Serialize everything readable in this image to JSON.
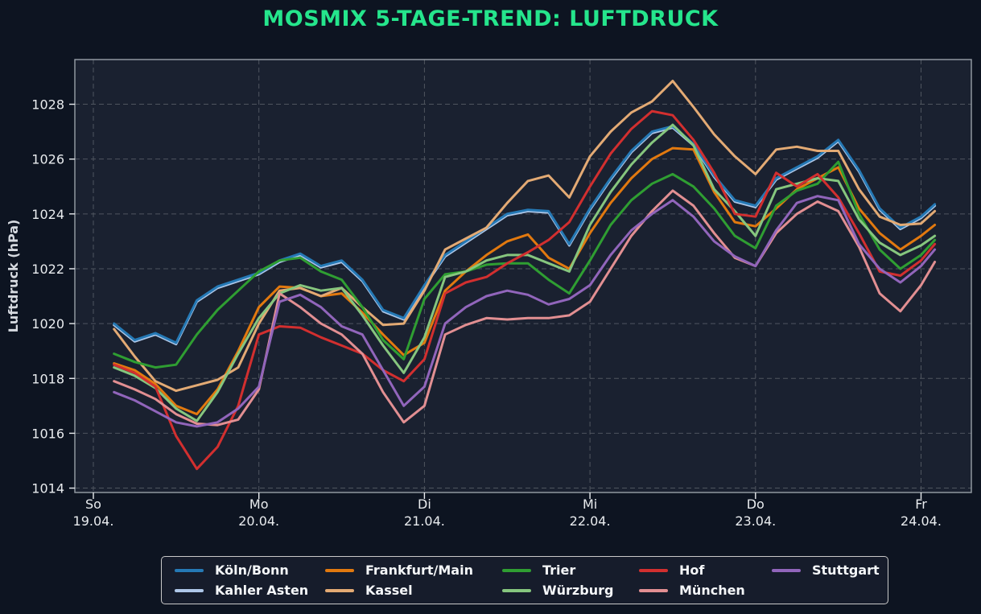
{
  "chart_data": {
    "type": "line",
    "title": "MOSMIX 5-TAGE-TREND: LUFTDRUCK",
    "ylabel": "Luftdruck (hPa)",
    "ylim": [
      1013.8,
      1029.6
    ],
    "yticks": [
      1014,
      1016,
      1018,
      1020,
      1022,
      1024,
      1026,
      1028
    ],
    "grid": "dashed",
    "legend_position": "bottom-center",
    "x_unit": "hours since So 19.04. 00:00",
    "x_hours": [
      3,
      6,
      9,
      12,
      15,
      18,
      21,
      24,
      27,
      30,
      33,
      36,
      39,
      42,
      45,
      48,
      51,
      54,
      57,
      60,
      63,
      66,
      69,
      72,
      75,
      78,
      81,
      84,
      87,
      90,
      93,
      96,
      99,
      102,
      105,
      108,
      111,
      114,
      117,
      120,
      122
    ],
    "xticks": [
      {
        "hour": 0,
        "day": "So",
        "date": "19.04."
      },
      {
        "hour": 24,
        "day": "Mo",
        "date": "20.04."
      },
      {
        "hour": 48,
        "day": "Di",
        "date": "21.04."
      },
      {
        "hour": 72,
        "day": "Mi",
        "date": "22.04."
      },
      {
        "hour": 96,
        "day": "Do",
        "date": "23.04."
      },
      {
        "hour": 120,
        "day": "Fr",
        "date": "24.04."
      }
    ],
    "series": [
      {
        "id": "koeln-bonn",
        "name": "Köln/Bonn",
        "color": "#2579b5",
        "values": [
          1020.0,
          1019.4,
          1019.65,
          1019.3,
          1020.85,
          1021.35,
          1021.6,
          1021.85,
          1022.3,
          1022.55,
          1022.1,
          1022.3,
          1021.6,
          1020.5,
          1020.2,
          1021.4,
          1022.5,
          1023.0,
          1023.5,
          1024.0,
          1024.15,
          1024.1,
          1022.9,
          1024.2,
          1025.3,
          1026.3,
          1027.0,
          1027.2,
          1026.55,
          1025.4,
          1024.5,
          1024.3,
          1025.3,
          1025.7,
          1026.1,
          1026.7,
          1025.6,
          1024.2,
          1023.5,
          1023.9,
          1024.35
        ]
      },
      {
        "id": "kahler-asten",
        "name": "Kahler Asten",
        "color": "#aec7e8",
        "values": [
          1019.95,
          1019.35,
          1019.6,
          1019.25,
          1020.8,
          1021.3,
          1021.55,
          1021.8,
          1022.25,
          1022.5,
          1022.05,
          1022.25,
          1021.55,
          1020.45,
          1020.15,
          1021.35,
          1022.45,
          1022.95,
          1023.45,
          1023.95,
          1024.1,
          1024.05,
          1022.85,
          1024.15,
          1025.25,
          1026.25,
          1026.95,
          1027.15,
          1026.5,
          1025.35,
          1024.45,
          1024.25,
          1025.25,
          1025.65,
          1026.05,
          1026.65,
          1025.55,
          1024.15,
          1023.45,
          1023.85,
          1024.3
        ]
      },
      {
        "id": "frankfurt-main",
        "name": "Frankfurt/Main",
        "color": "#e2790f",
        "values": [
          1018.55,
          1018.3,
          1017.8,
          1017.0,
          1016.7,
          1017.6,
          1019.0,
          1020.6,
          1021.35,
          1021.3,
          1021.0,
          1021.1,
          1020.4,
          1019.6,
          1018.85,
          1019.3,
          1021.2,
          1021.9,
          1022.5,
          1023.0,
          1023.25,
          1022.4,
          1022.0,
          1023.3,
          1024.4,
          1025.3,
          1026.0,
          1026.4,
          1026.35,
          1024.8,
          1023.7,
          1023.55,
          1024.2,
          1024.9,
          1025.3,
          1025.7,
          1024.2,
          1023.3,
          1022.7,
          1023.2,
          1023.6
        ]
      },
      {
        "id": "kassel",
        "name": "Kassel",
        "color": "#e3aa74",
        "values": [
          1019.8,
          1018.8,
          1017.9,
          1017.55,
          1017.75,
          1017.95,
          1018.4,
          1020.0,
          1021.2,
          1021.3,
          1021.0,
          1021.3,
          1020.6,
          1019.95,
          1020.0,
          1021.2,
          1022.7,
          1023.1,
          1023.5,
          1024.4,
          1025.2,
          1025.4,
          1024.6,
          1026.1,
          1027.0,
          1027.7,
          1028.1,
          1028.85,
          1027.9,
          1026.9,
          1026.1,
          1025.45,
          1026.35,
          1026.45,
          1026.3,
          1026.3,
          1024.9,
          1023.9,
          1023.6,
          1023.65,
          1024.1
        ]
      },
      {
        "id": "trier",
        "name": "Trier",
        "color": "#2f9e32",
        "values": [
          1018.9,
          1018.6,
          1018.4,
          1018.5,
          1019.6,
          1020.5,
          1021.2,
          1021.9,
          1022.3,
          1022.4,
          1021.9,
          1021.6,
          1020.6,
          1019.4,
          1018.7,
          1020.9,
          1021.8,
          1021.9,
          1022.15,
          1022.2,
          1022.2,
          1021.6,
          1021.1,
          1022.3,
          1023.6,
          1024.5,
          1025.1,
          1025.45,
          1025.0,
          1024.2,
          1023.2,
          1022.75,
          1024.3,
          1024.85,
          1025.1,
          1025.9,
          1024.0,
          1022.7,
          1022.0,
          1022.5,
          1023.05
        ]
      },
      {
        "id": "wuerzburg",
        "name": "Würzburg",
        "color": "#86c67e",
        "values": [
          1018.4,
          1018.1,
          1017.65,
          1016.9,
          1016.45,
          1017.5,
          1018.9,
          1020.2,
          1021.1,
          1021.4,
          1021.2,
          1021.3,
          1020.3,
          1019.2,
          1018.2,
          1019.5,
          1021.7,
          1021.9,
          1022.3,
          1022.5,
          1022.5,
          1022.2,
          1021.9,
          1023.6,
          1024.8,
          1025.8,
          1026.6,
          1027.25,
          1026.5,
          1024.9,
          1024.1,
          1023.2,
          1024.9,
          1025.1,
          1025.3,
          1025.2,
          1023.8,
          1022.95,
          1022.5,
          1022.85,
          1023.2
        ]
      },
      {
        "id": "hof",
        "name": "Hof",
        "color": "#d22f2f",
        "values": [
          1018.5,
          1018.2,
          1017.7,
          1015.9,
          1014.7,
          1015.5,
          1017.0,
          1019.6,
          1019.9,
          1019.85,
          1019.5,
          1019.2,
          1018.9,
          1018.3,
          1017.9,
          1018.7,
          1021.1,
          1021.5,
          1021.7,
          1022.2,
          1022.6,
          1023.05,
          1023.7,
          1025.0,
          1026.2,
          1027.1,
          1027.75,
          1027.6,
          1026.7,
          1025.5,
          1024.0,
          1023.9,
          1025.5,
          1025.0,
          1025.45,
          1024.6,
          1023.3,
          1021.9,
          1021.75,
          1022.3,
          1022.9
        ]
      },
      {
        "id": "muenchen",
        "name": "München",
        "color": "#e28f92",
        "values": [
          1017.9,
          1017.6,
          1017.25,
          1016.7,
          1016.35,
          1016.3,
          1016.5,
          1017.6,
          1021.1,
          1020.6,
          1020.0,
          1019.6,
          1018.9,
          1017.5,
          1016.4,
          1017.0,
          1019.6,
          1019.95,
          1020.2,
          1020.15,
          1020.2,
          1020.2,
          1020.3,
          1020.8,
          1022.0,
          1023.2,
          1024.1,
          1024.85,
          1024.3,
          1023.3,
          1022.4,
          1022.1,
          1023.3,
          1024.0,
          1024.45,
          1024.1,
          1022.8,
          1021.1,
          1020.45,
          1021.4,
          1022.25
        ]
      },
      {
        "id": "stuttgart",
        "name": "Stuttgart",
        "color": "#9165bb",
        "values": [
          1017.5,
          1017.2,
          1016.8,
          1016.4,
          1016.25,
          1016.4,
          1016.9,
          1017.7,
          1020.8,
          1021.05,
          1020.6,
          1019.9,
          1019.6,
          1018.3,
          1017.0,
          1017.7,
          1020.0,
          1020.6,
          1021.0,
          1021.2,
          1021.05,
          1020.7,
          1020.9,
          1021.4,
          1022.5,
          1023.4,
          1024.0,
          1024.5,
          1023.9,
          1023.0,
          1022.45,
          1022.1,
          1023.4,
          1024.4,
          1024.65,
          1024.5,
          1022.9,
          1022.0,
          1021.5,
          1022.1,
          1022.7
        ]
      }
    ],
    "draw_order": [
      "kahler-asten",
      "koeln-bonn",
      "frankfurt-main",
      "kassel",
      "trier",
      "wuerzburg",
      "hof",
      "muenchen",
      "stuttgart"
    ]
  },
  "colors": {
    "figure_bg": "#0d1421",
    "axes_bg": "#1a2130",
    "grid": "#4f555f",
    "spine": "#99a0a8",
    "tick_text": "#e9ecef",
    "ylabel_text": "#d6dae0",
    "title_text": "#25e58c",
    "legend_border": "#c9c9c9",
    "legend_bg": "#161c2b",
    "legend_text": "#f4f6f8"
  }
}
